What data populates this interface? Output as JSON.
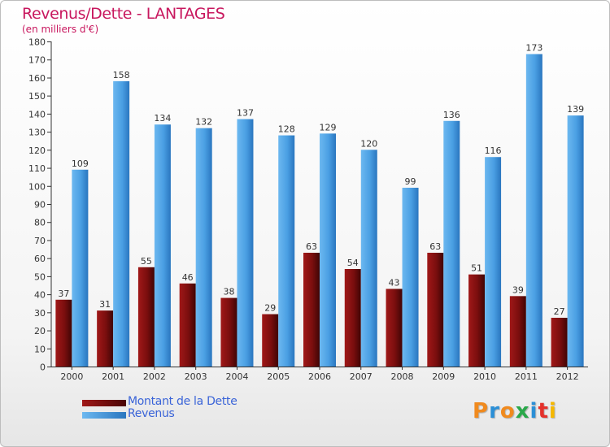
{
  "title": "Revenus/Dette - LANTAGES",
  "subtitle": "(en milliers d'€)",
  "chart_data": {
    "type": "bar",
    "title": "Revenus/Dette - LANTAGES",
    "subtitle": "(en milliers d'€)",
    "xlabel": "",
    "ylabel": "",
    "categories": [
      "2000",
      "2001",
      "2002",
      "2003",
      "2004",
      "2005",
      "2006",
      "2007",
      "2008",
      "2009",
      "2010",
      "2011",
      "2012"
    ],
    "series": [
      {
        "name": "Montant de la Dette",
        "color": "#7a0e0e",
        "values": [
          37,
          31,
          55,
          46,
          38,
          29,
          63,
          54,
          43,
          63,
          51,
          39,
          27
        ]
      },
      {
        "name": "Revenus",
        "color": "#4a9fe3",
        "values": [
          109,
          158,
          134,
          132,
          137,
          128,
          129,
          120,
          99,
          136,
          116,
          173,
          139
        ]
      }
    ],
    "ylim": [
      0,
      180
    ],
    "ytick_step": 10,
    "grid": false,
    "data_labels": true,
    "legend_position": "bottom-left"
  },
  "legend": {
    "items": [
      {
        "label": "Montant de la Dette",
        "color": "#7a0e0e"
      },
      {
        "label": "Revenus",
        "color": "#4a9fe3"
      }
    ]
  },
  "logo": {
    "letters": [
      "P",
      "r",
      "o",
      "x",
      "i",
      "t",
      "i"
    ],
    "colors": [
      "#f08a1e",
      "#2b8fd6",
      "#f08a1e",
      "#2aa84a",
      "#2b8fd6",
      "#e4312b",
      "#f5b800"
    ]
  }
}
